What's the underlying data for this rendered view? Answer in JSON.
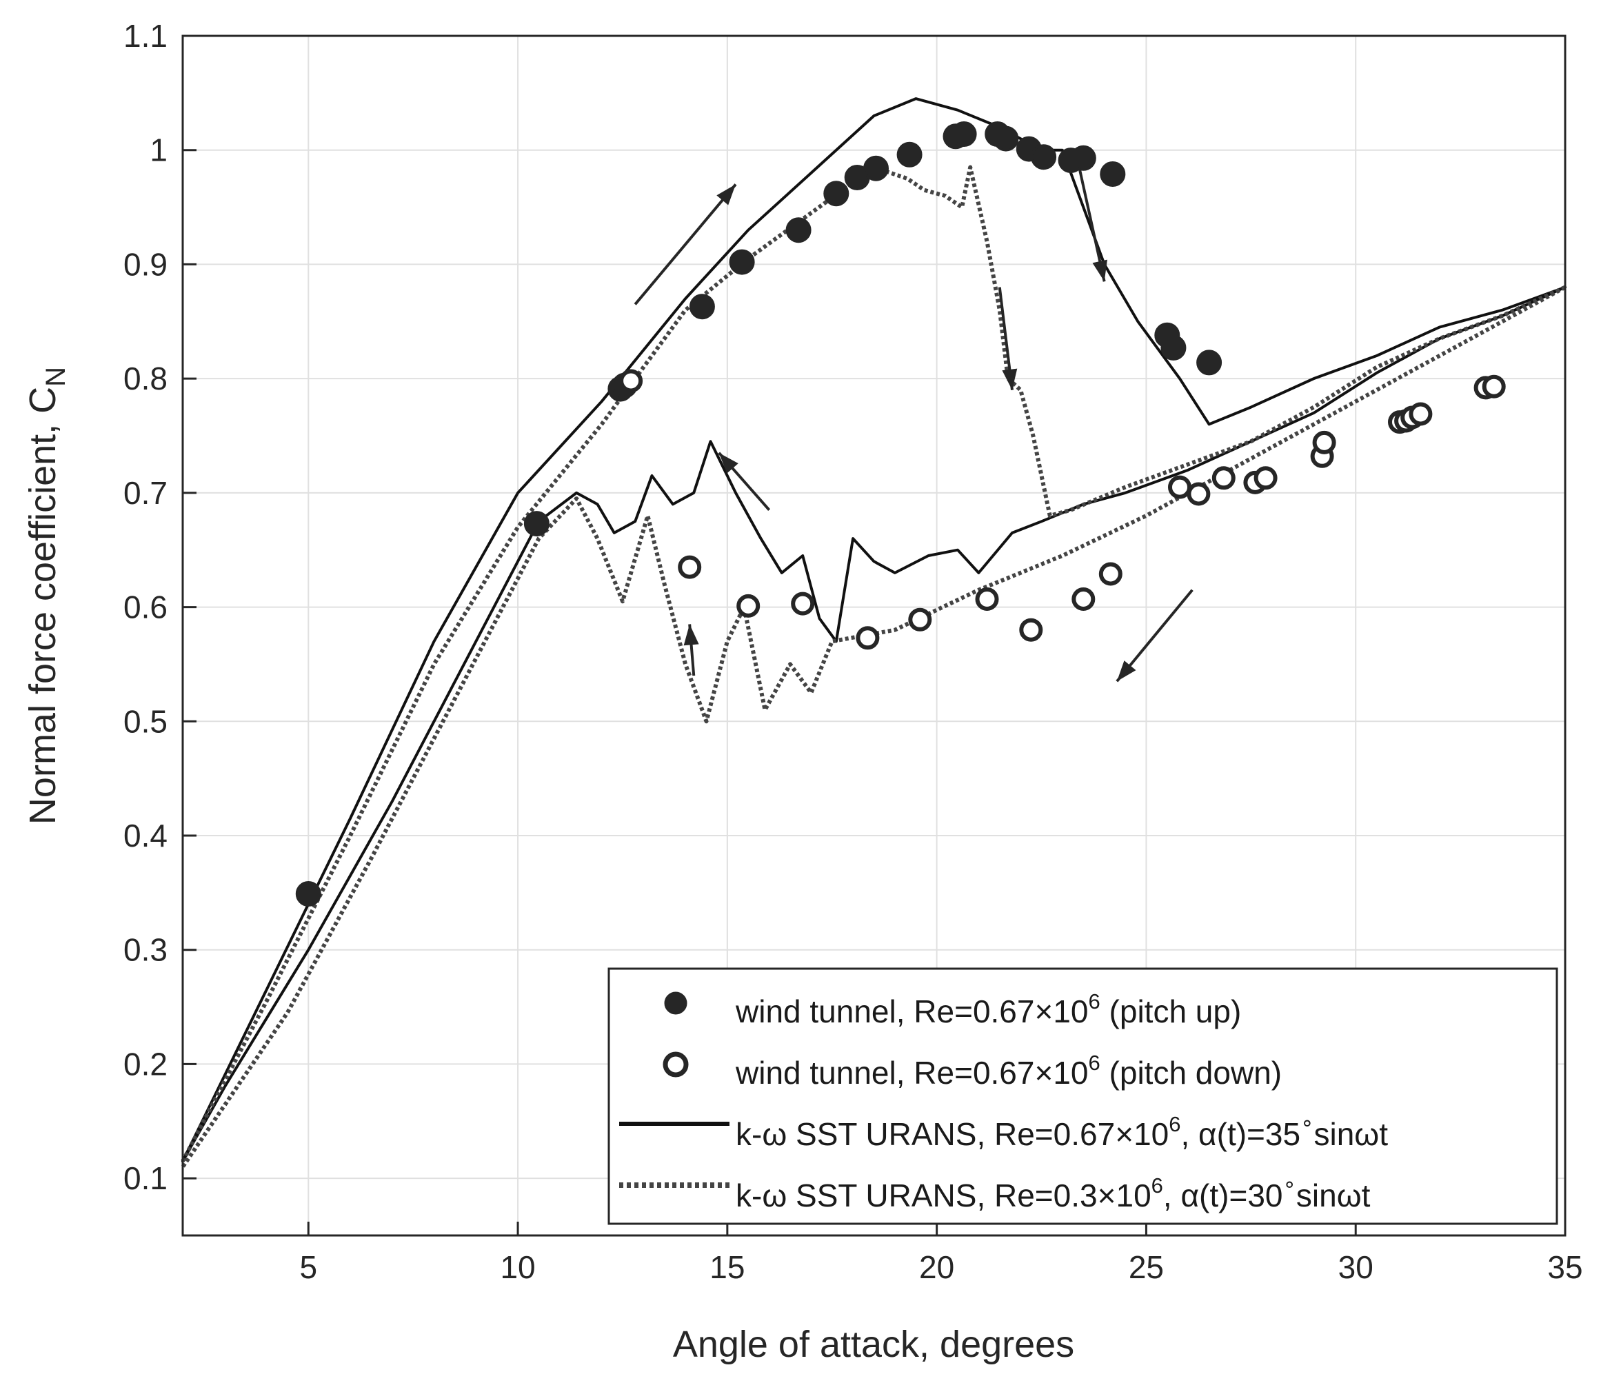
{
  "chart_data": {
    "type": "line",
    "xlabel": "Angle of attack, degrees",
    "ylabel": "Normal force coefficient, C",
    "ylabel_subscript": "N",
    "xlim": [
      2,
      35
    ],
    "ylim": [
      0.05,
      1.1
    ],
    "xticks": [
      5,
      10,
      15,
      20,
      25,
      30,
      35
    ],
    "yticks": [
      0.1,
      0.2,
      0.3,
      0.4,
      0.5,
      0.6,
      0.7,
      0.8,
      0.9,
      1,
      1.1
    ],
    "xtick_labels": [
      "5",
      "10",
      "15",
      "20",
      "25",
      "30",
      "35"
    ],
    "ytick_labels": [
      "0.1",
      "0.2",
      "0.3",
      "0.4",
      "0.5",
      "0.6",
      "0.7",
      "0.8",
      "0.9",
      "1",
      "1.1"
    ],
    "grid": true,
    "legend_position": "bottom-right",
    "series": [
      {
        "name": "wind tunnel, Re=0.67×10^6 (pitch up)",
        "kind": "marker-filled",
        "color": "#262626",
        "x": [
          5.0,
          10.45,
          12.45,
          12.55,
          14.4,
          15.35,
          16.7,
          17.6,
          18.1,
          18.55,
          19.35,
          20.45,
          20.65,
          21.45,
          21.65,
          22.2,
          22.55,
          23.2,
          23.5,
          24.2,
          25.5,
          25.65,
          26.5
        ],
        "y": [
          0.349,
          0.673,
          0.791,
          0.794,
          0.863,
          0.902,
          0.93,
          0.962,
          0.976,
          0.984,
          0.996,
          1.012,
          1.014,
          1.014,
          1.01,
          1.001,
          0.994,
          0.991,
          0.993,
          0.979,
          0.838,
          0.827,
          0.814
        ]
      },
      {
        "name": "wind tunnel, Re=0.67×10^6 (pitch down)",
        "kind": "marker-open",
        "color": "#262626",
        "x": [
          12.7,
          14.1,
          15.5,
          16.8,
          18.35,
          19.6,
          21.2,
          22.25,
          23.5,
          24.15,
          25.8,
          26.25,
          26.85,
          27.6,
          27.85,
          29.2,
          29.25,
          31.05,
          31.2,
          31.35,
          31.55,
          33.1,
          33.3
        ],
        "y": [
          0.798,
          0.635,
          0.601,
          0.603,
          0.573,
          0.589,
          0.607,
          0.58,
          0.607,
          0.629,
          0.705,
          0.699,
          0.713,
          0.709,
          0.713,
          0.732,
          0.744,
          0.762,
          0.763,
          0.766,
          0.769,
          0.792,
          0.793
        ]
      },
      {
        "name": "k-ω SST URANS, Re=0.67×10^6, α(t)=35°sinωt",
        "kind": "line-solid",
        "color": "#111111",
        "upstroke": [
          [
            2,
            0.115
          ],
          [
            4,
            0.265
          ],
          [
            6,
            0.415
          ],
          [
            8,
            0.57
          ],
          [
            10,
            0.7
          ],
          [
            12,
            0.78
          ],
          [
            14,
            0.87
          ],
          [
            15.5,
            0.93
          ],
          [
            17,
            0.98
          ],
          [
            18.5,
            1.03
          ],
          [
            19.5,
            1.045
          ],
          [
            20.5,
            1.035
          ],
          [
            21.5,
            1.02
          ],
          [
            22.5,
            1.0
          ],
          [
            23,
            1.0
          ],
          [
            23.4,
            0.96
          ],
          [
            24,
            0.9
          ],
          [
            24.8,
            0.85
          ],
          [
            25.8,
            0.8
          ],
          [
            26.5,
            0.76
          ],
          [
            27.5,
            0.775
          ],
          [
            29,
            0.8
          ],
          [
            30.5,
            0.82
          ],
          [
            32,
            0.845
          ],
          [
            33.5,
            0.86
          ],
          [
            35,
            0.88
          ]
        ],
        "downstroke": [
          [
            35,
            0.88
          ],
          [
            33.5,
            0.855
          ],
          [
            32,
            0.835
          ],
          [
            30.5,
            0.805
          ],
          [
            29,
            0.77
          ],
          [
            27.5,
            0.745
          ],
          [
            26,
            0.72
          ],
          [
            24.5,
            0.7
          ],
          [
            23.5,
            0.69
          ],
          [
            22.5,
            0.675
          ],
          [
            21.8,
            0.665
          ],
          [
            21,
            0.63
          ],
          [
            20.5,
            0.65
          ],
          [
            19.8,
            0.645
          ],
          [
            19,
            0.63
          ],
          [
            18.5,
            0.64
          ],
          [
            18.0,
            0.66
          ],
          [
            17.6,
            0.57
          ],
          [
            17.2,
            0.59
          ],
          [
            16.8,
            0.645
          ],
          [
            16.3,
            0.63
          ],
          [
            15.8,
            0.66
          ],
          [
            15.2,
            0.7
          ],
          [
            14.6,
            0.745
          ],
          [
            14.2,
            0.7
          ],
          [
            13.7,
            0.69
          ],
          [
            13.2,
            0.715
          ],
          [
            12.8,
            0.675
          ],
          [
            12.3,
            0.665
          ],
          [
            11.9,
            0.69
          ],
          [
            11.4,
            0.7
          ],
          [
            10.5,
            0.675
          ],
          [
            9,
            0.57
          ],
          [
            7,
            0.43
          ],
          [
            5,
            0.3
          ],
          [
            3,
            0.18
          ],
          [
            2,
            0.115
          ]
        ]
      },
      {
        "name": "k-ω SST URANS, Re=0.3×10^6, α(t)=30°sinωt",
        "kind": "line-dotted",
        "color": "#444444",
        "upstroke": [
          [
            2,
            0.115
          ],
          [
            4,
            0.255
          ],
          [
            6,
            0.4
          ],
          [
            8,
            0.55
          ],
          [
            10,
            0.67
          ],
          [
            12,
            0.76
          ],
          [
            14,
            0.86
          ],
          [
            15.5,
            0.905
          ],
          [
            17,
            0.945
          ],
          [
            18.5,
            0.985
          ],
          [
            19.3,
            0.975
          ],
          [
            19.7,
            0.965
          ],
          [
            20.2,
            0.96
          ],
          [
            20.6,
            0.95
          ],
          [
            20.8,
            0.985
          ],
          [
            21.2,
            0.92
          ],
          [
            21.5,
            0.86
          ],
          [
            21.7,
            0.8
          ],
          [
            22.0,
            0.79
          ],
          [
            22.3,
            0.75
          ],
          [
            22.7,
            0.68
          ],
          [
            23.2,
            0.685
          ],
          [
            24.5,
            0.705
          ],
          [
            26,
            0.725
          ],
          [
            27.5,
            0.745
          ],
          [
            29,
            0.775
          ],
          [
            30.5,
            0.81
          ],
          [
            32,
            0.835
          ],
          [
            33.5,
            0.855
          ],
          [
            35,
            0.88
          ]
        ],
        "downstroke": [
          [
            35,
            0.88
          ],
          [
            33,
            0.84
          ],
          [
            31,
            0.8
          ],
          [
            29,
            0.76
          ],
          [
            27,
            0.72
          ],
          [
            25,
            0.68
          ],
          [
            23,
            0.645
          ],
          [
            21,
            0.615
          ],
          [
            19,
            0.58
          ],
          [
            17.5,
            0.57
          ],
          [
            17.0,
            0.525
          ],
          [
            16.5,
            0.55
          ],
          [
            15.9,
            0.51
          ],
          [
            15.4,
            0.6
          ],
          [
            15.0,
            0.57
          ],
          [
            14.5,
            0.5
          ],
          [
            14.0,
            0.55
          ],
          [
            13.5,
            0.62
          ],
          [
            13.1,
            0.68
          ],
          [
            12.5,
            0.605
          ],
          [
            11.9,
            0.66
          ],
          [
            11.4,
            0.695
          ],
          [
            10.5,
            0.66
          ],
          [
            8.5,
            0.52
          ],
          [
            6.5,
            0.38
          ],
          [
            4.5,
            0.245
          ],
          [
            2,
            0.11
          ]
        ]
      }
    ],
    "arrows": [
      {
        "from": [
          12.8,
          0.865
        ],
        "to": [
          15.2,
          0.97
        ]
      },
      {
        "from": [
          23.4,
          0.985
        ],
        "to": [
          24.0,
          0.885
        ]
      },
      {
        "from": [
          21.5,
          0.88
        ],
        "to": [
          21.8,
          0.79
        ]
      },
      {
        "from": [
          16.0,
          0.685
        ],
        "to": [
          14.8,
          0.735
        ]
      },
      {
        "from": [
          14.2,
          0.54
        ],
        "to": [
          14.1,
          0.585
        ]
      },
      {
        "from": [
          26.1,
          0.615
        ],
        "to": [
          24.3,
          0.535
        ]
      }
    ]
  },
  "legend": {
    "entries": [
      {
        "text": "wind tunnel, Re=0.67×10",
        "sup": "6",
        "tail": " (pitch up)"
      },
      {
        "text": "wind tunnel, Re=0.67×10",
        "sup": "6",
        "tail": " (pitch down)"
      },
      {
        "text": "k-ω SST URANS, Re=0.67×10",
        "sup": "6",
        "tail": ", α(t)=35",
        "sup2": "∘",
        "tail2": "sinωt"
      },
      {
        "text": "k-ω SST URANS, Re=0.3×10",
        "sup": "6",
        "tail": ", α(t)=30",
        "sup2": "∘",
        "tail2": "sinωt"
      }
    ]
  }
}
